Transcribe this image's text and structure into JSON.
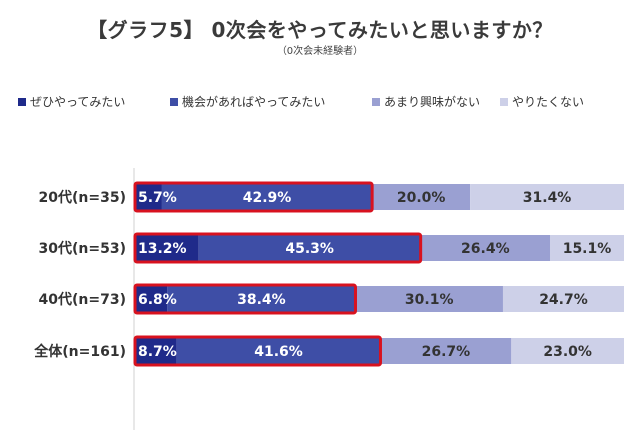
{
  "chart_data": {
    "type": "bar",
    "stacked": true,
    "orientation": "horizontal",
    "title": "【グラフ5】 0次会をやってみたいと思いますか？",
    "subtitle": "（0次会未経験者）",
    "categories": [
      "20代(n=35)",
      "30代(n=53)",
      "40代(n=73)",
      "全体(n=161)"
    ],
    "series": [
      {
        "name": "ぜひやってみたい",
        "color": "#1f2a8a",
        "values": [
          5.7,
          13.2,
          6.8,
          8.7
        ],
        "labels": [
          "5.7%",
          "13.2%",
          "6.8%",
          "8.7%"
        ]
      },
      {
        "name": "機会があればやってみたい",
        "color": "#3e4ea6",
        "values": [
          42.9,
          45.3,
          38.4,
          41.6
        ],
        "labels": [
          "42.9%",
          "45.3%",
          "38.4%",
          "41.6%"
        ]
      },
      {
        "name": "あまり興味がない",
        "color": "#9aa0d2",
        "values": [
          20.0,
          26.4,
          30.1,
          26.7
        ],
        "labels": [
          "20.0%",
          "26.4%",
          "30.1%",
          "26.7%"
        ]
      },
      {
        "name": "やりたくない",
        "color": "#cdd0e8",
        "values": [
          31.4,
          15.1,
          24.7,
          23.0
        ],
        "labels": [
          "31.4%",
          "15.1%",
          "24.7%",
          "23.0%"
        ]
      }
    ],
    "highlight_color": "#d8121f",
    "legend_position": "top",
    "xlim": [
      0,
      100
    ]
  }
}
